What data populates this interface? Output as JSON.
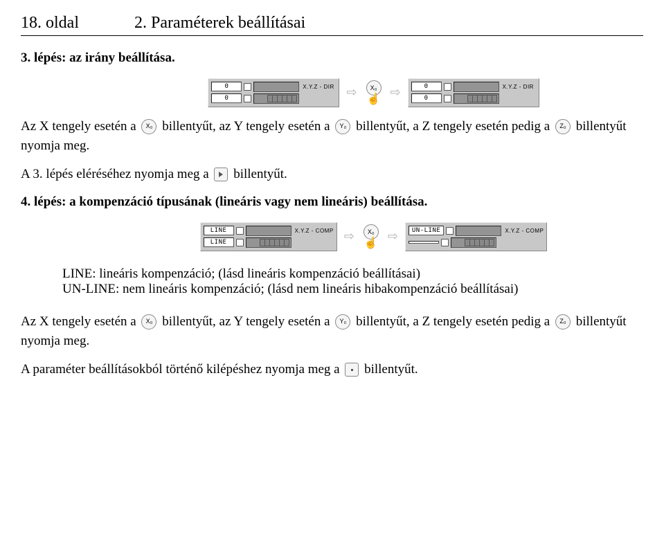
{
  "header": {
    "page_label": "18. oldal",
    "chapter_title": "2. Paraméterek beállításai"
  },
  "step3": {
    "title": "3. lépés: az irány beállítása.",
    "diagram": {
      "left_unit": {
        "row1_field": "0",
        "row2_field": "0",
        "label": "X.Y.Z - DIR"
      },
      "middle_key": "X₀",
      "right_unit": {
        "row1_field": "0",
        "row2_field": "0",
        "label": "X.Y.Z - DIR"
      }
    },
    "para1_a": "Az X tengely esetén a",
    "para1_b": "billentyűt, az Y tengely esetén a",
    "para1_c": "billentyűt, a Z tengely esetén pedig a",
    "para1_d": "billentyűt nyomja meg.",
    "keys": {
      "x": "X₀",
      "y": "Y₀",
      "z": "Z₀"
    },
    "para2_a": "A 3. lépés eléréséhez nyomja meg a",
    "para2_b": "billentyűt."
  },
  "step4": {
    "title": "4. lépés: a kompenzáció típusának (lineáris vagy nem lineáris) beállítása.",
    "diagram": {
      "left_unit": {
        "row1_field": "LINE",
        "row2_field": "LINE",
        "label": "X.Y.Z - COMP"
      },
      "middle_key": "X₀",
      "right_unit": {
        "row1_field": "UN-LINE",
        "row2_field": "",
        "label": "X.Y.Z - COMP"
      }
    },
    "line_def": "LINE: lineáris kompenzáció; (lásd lineáris kompenzáció beállításai)",
    "unline_def": "UN-LINE: nem lineáris kompenzáció; (lásd nem lineáris hibakompenzáció beállításai)",
    "para1_a": "Az X tengely esetén a",
    "para1_b": "billentyűt, az Y tengely esetén a",
    "para1_c": "billentyűt, a Z tengely esetén pedig a",
    "para1_d": "billentyűt nyomja meg.",
    "para2_a": "A paraméter beállításokból történő kilépéshez nyomja meg a",
    "para2_b": "billentyűt."
  }
}
